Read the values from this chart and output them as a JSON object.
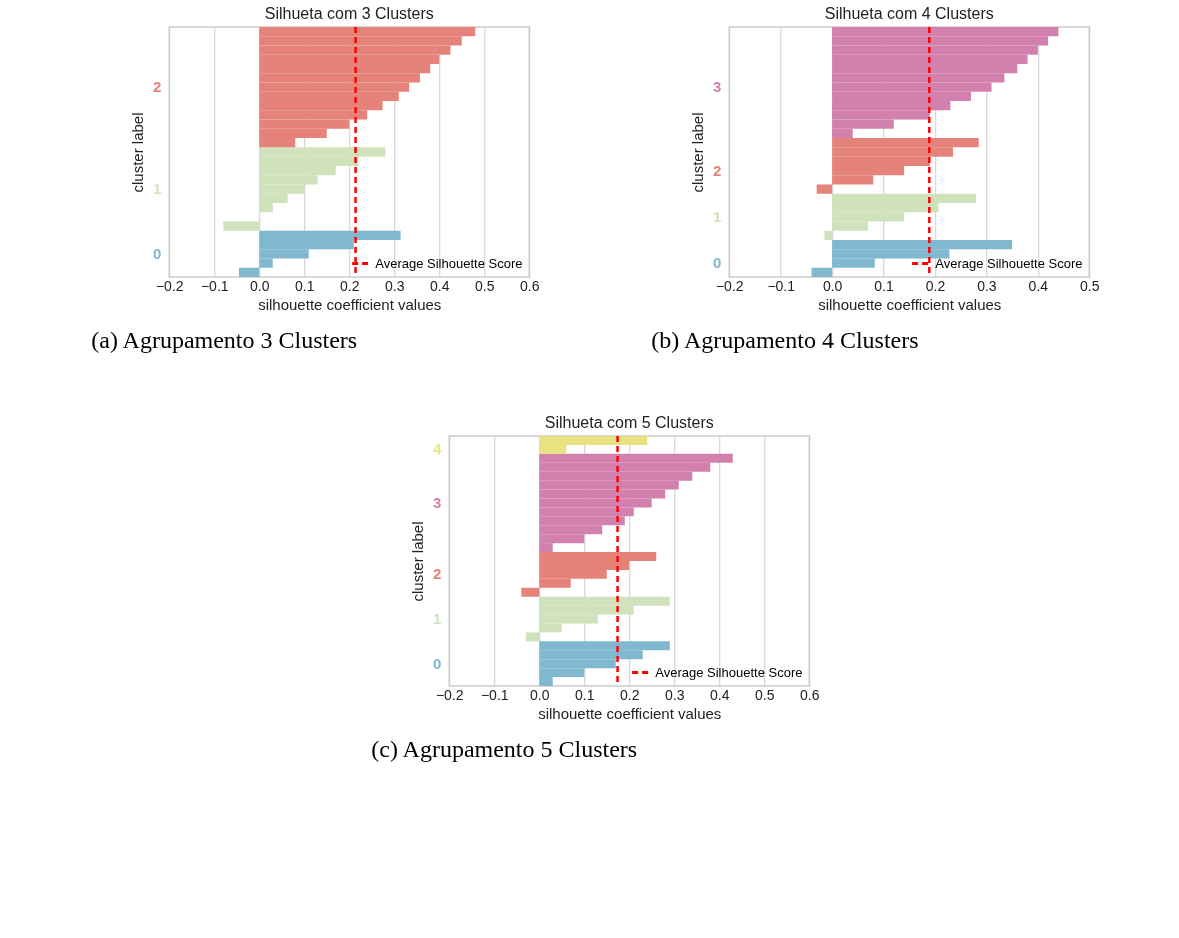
{
  "chart_data": [
    {
      "type": "bar",
      "orientation": "horizontal",
      "title": "Silhueta com 3 Clusters",
      "xlabel": "silhouette coefficient values",
      "ylabel": "cluster label",
      "xlim": [
        -0.2,
        0.6
      ],
      "xticks": [
        {
          "value": -0.2,
          "label": "−0.2"
        },
        {
          "value": -0.1,
          "label": "−0.1"
        },
        {
          "value": 0.0,
          "label": "0.0"
        },
        {
          "value": 0.1,
          "label": "0.1"
        },
        {
          "value": 0.2,
          "label": "0.2"
        },
        {
          "value": 0.3,
          "label": "0.3"
        },
        {
          "value": 0.4,
          "label": "0.4"
        },
        {
          "value": 0.5,
          "label": "0.5"
        },
        {
          "value": 0.6,
          "label": "0.6"
        }
      ],
      "tick_labels": "x",
      "grid": "x",
      "legend": "bottom right",
      "categories": [
        null,
        null,
        null,
        null,
        null,
        null,
        null,
        null,
        null,
        null,
        null,
        null,
        null,
        null,
        null,
        null,
        null,
        null,
        null,
        null,
        null,
        null,
        null,
        null,
        null,
        null,
        null
      ],
      "series": [
        {
          "name": "0",
          "color": "#80b8d0",
          "values": [
            null,
            null,
            null,
            null,
            null,
            null,
            null,
            null,
            null,
            null,
            null,
            null,
            null,
            null,
            null,
            null,
            null,
            null,
            null,
            null,
            null,
            null,
            0.314,
            0.21,
            0.11,
            0.03,
            -0.045
          ]
        },
        {
          "name": "1",
          "color": "#d0e2bc",
          "values": [
            null,
            null,
            null,
            null,
            null,
            null,
            null,
            null,
            null,
            null,
            null,
            null,
            null,
            0.28,
            0.22,
            0.17,
            0.13,
            0.1,
            0.063,
            0.03,
            0.0,
            -0.08,
            null,
            null,
            null,
            null,
            null
          ]
        },
        {
          "name": "2",
          "color": "#e5837b",
          "values": [
            0.48,
            0.45,
            0.425,
            0.4,
            0.38,
            0.357,
            0.333,
            0.31,
            0.274,
            0.24,
            0.2,
            0.15,
            0.08,
            null,
            null,
            null,
            null,
            null,
            null,
            null,
            null,
            null,
            null,
            null,
            null,
            null,
            null
          ]
        }
      ],
      "ref_lines": [
        {
          "axis": "x",
          "value": 0.214,
          "label": "Average Silhouette Score",
          "color": "#ff0000",
          "line_style": "dashed"
        }
      ],
      "annotations": [
        "(a) Agrupamento 3 Clusters"
      ]
    },
    {
      "type": "bar",
      "orientation": "horizontal",
      "title": "Silhueta com 4 Clusters",
      "xlabel": "silhouette coefficient values",
      "ylabel": "cluster label",
      "xlim": [
        -0.2,
        0.5
      ],
      "xticks": [
        {
          "value": -0.2,
          "label": "−0.2"
        },
        {
          "value": -0.1,
          "label": "−0.1"
        },
        {
          "value": 0.0,
          "label": "0.0"
        },
        {
          "value": 0.1,
          "label": "0.1"
        },
        {
          "value": 0.2,
          "label": "0.2"
        },
        {
          "value": 0.3,
          "label": "0.3"
        },
        {
          "value": 0.4,
          "label": "0.4"
        },
        {
          "value": 0.5,
          "label": "0.5"
        }
      ],
      "tick_labels": "x",
      "grid": "x",
      "legend": "bottom right",
      "categories": [
        null,
        null,
        null,
        null,
        null,
        null,
        null,
        null,
        null,
        null,
        null,
        null,
        null,
        null,
        null,
        null,
        null,
        null,
        null,
        null,
        null,
        null,
        null,
        null,
        null,
        null,
        null
      ],
      "series": [
        {
          "name": "0",
          "color": "#80b8d0",
          "values": [
            null,
            null,
            null,
            null,
            null,
            null,
            null,
            null,
            null,
            null,
            null,
            null,
            null,
            null,
            null,
            null,
            null,
            null,
            null,
            null,
            null,
            null,
            null,
            0.35,
            0.228,
            0.083,
            -0.04
          ]
        },
        {
          "name": "1",
          "color": "#d0e2bc",
          "values": [
            null,
            null,
            null,
            null,
            null,
            null,
            null,
            null,
            null,
            null,
            null,
            null,
            null,
            null,
            null,
            null,
            null,
            null,
            0.28,
            0.207,
            0.14,
            0.07,
            -0.015,
            null,
            null,
            null,
            null
          ]
        },
        {
          "name": "2",
          "color": "#e5837b",
          "values": [
            null,
            null,
            null,
            null,
            null,
            null,
            null,
            null,
            null,
            null,
            null,
            null,
            0.285,
            0.235,
            0.19,
            0.14,
            0.08,
            -0.03,
            null,
            null,
            null,
            null,
            null,
            null,
            null,
            null,
            null
          ]
        },
        {
          "name": "3",
          "color": "#d280ad",
          "values": [
            0.44,
            0.42,
            0.4,
            0.38,
            0.36,
            0.335,
            0.31,
            0.27,
            0.23,
            0.19,
            0.12,
            0.04,
            null,
            null,
            null,
            null,
            null,
            null,
            null,
            null,
            null,
            null,
            null,
            null,
            null,
            null,
            null
          ]
        }
      ],
      "ref_lines": [
        {
          "axis": "x",
          "value": 0.189,
          "label": "Average Silhouette Score",
          "color": "#ff0000",
          "line_style": "dashed"
        }
      ],
      "annotations": [
        "(b) Agrupamento 4 Clusters"
      ]
    },
    {
      "type": "bar",
      "orientation": "horizontal",
      "title": "Silhueta com 5 Clusters",
      "xlabel": "silhouette coefficient values",
      "ylabel": "cluster label",
      "xlim": [
        -0.2,
        0.6
      ],
      "xticks": [
        {
          "value": -0.2,
          "label": "−0.2"
        },
        {
          "value": -0.1,
          "label": "−0.1"
        },
        {
          "value": 0.0,
          "label": "0.0"
        },
        {
          "value": 0.1,
          "label": "0.1"
        },
        {
          "value": 0.2,
          "label": "0.2"
        },
        {
          "value": 0.3,
          "label": "0.3"
        },
        {
          "value": 0.4,
          "label": "0.4"
        },
        {
          "value": 0.5,
          "label": "0.5"
        },
        {
          "value": 0.6,
          "label": "0.6"
        }
      ],
      "tick_labels": "x",
      "grid": "x",
      "legend": "bottom right",
      "categories": [
        null,
        null,
        null,
        null,
        null,
        null,
        null,
        null,
        null,
        null,
        null,
        null,
        null,
        null,
        null,
        null,
        null,
        null,
        null,
        null,
        null,
        null,
        null,
        null,
        null,
        null,
        null,
        null
      ],
      "series": [
        {
          "name": "0",
          "color": "#80b8d0",
          "values": [
            null,
            null,
            null,
            null,
            null,
            null,
            null,
            null,
            null,
            null,
            null,
            null,
            null,
            null,
            null,
            null,
            null,
            null,
            null,
            null,
            null,
            null,
            null,
            0.29,
            0.23,
            0.17,
            0.1,
            0.03
          ]
        },
        {
          "name": "1",
          "color": "#d0e2bc",
          "values": [
            null,
            null,
            null,
            null,
            null,
            null,
            null,
            null,
            null,
            null,
            null,
            null,
            null,
            null,
            null,
            null,
            null,
            null,
            0.29,
            0.21,
            0.13,
            0.05,
            -0.03,
            null,
            null,
            null,
            null,
            null
          ]
        },
        {
          "name": "2",
          "color": "#e5837b",
          "values": [
            null,
            null,
            null,
            null,
            null,
            null,
            null,
            null,
            null,
            null,
            null,
            null,
            null,
            0.26,
            0.2,
            0.15,
            0.07,
            -0.04,
            null,
            null,
            null,
            null,
            null,
            null,
            null,
            null,
            null,
            null
          ]
        },
        {
          "name": "3",
          "color": "#d280ad",
          "values": [
            null,
            null,
            0.43,
            0.38,
            0.34,
            0.31,
            0.28,
            0.25,
            0.21,
            0.19,
            0.14,
            0.1,
            0.03,
            null,
            null,
            null,
            null,
            null,
            null,
            null,
            null,
            null,
            null,
            null,
            null,
            null,
            null,
            null
          ]
        },
        {
          "name": "4",
          "color": "#e8e282",
          "values": [
            0.24,
            0.06,
            null,
            null,
            null,
            null,
            null,
            null,
            null,
            null,
            null,
            null,
            null,
            null,
            null,
            null,
            null,
            null,
            null,
            null,
            null,
            null,
            null,
            null,
            null,
            null,
            null,
            null
          ]
        }
      ],
      "ref_lines": [
        {
          "axis": "x",
          "value": 0.174,
          "label": "Average Silhouette Score",
          "color": "#ff0000",
          "line_style": "dashed"
        }
      ],
      "annotations": [
        "(c) Agrupamento 5 Clusters"
      ]
    }
  ]
}
